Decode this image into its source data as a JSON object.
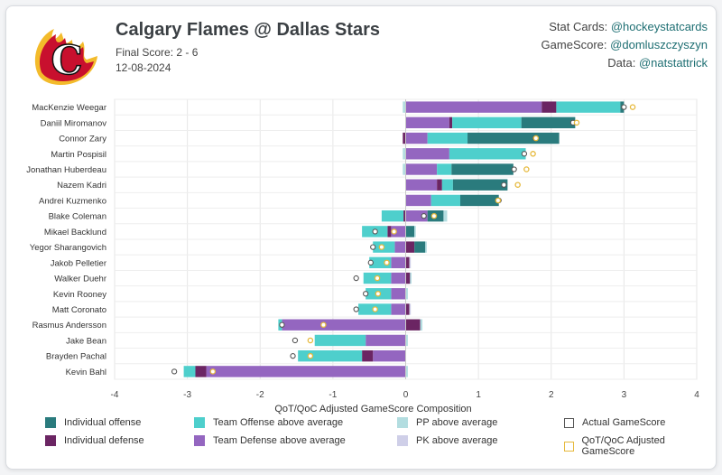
{
  "header": {
    "title": "Calgary Flames @ Dallas Stars",
    "final_score": "Final Score: 2 - 6",
    "date": "12-08-2024"
  },
  "credits": [
    {
      "label": "Stat Cards:",
      "handle": "@hockeystatcards"
    },
    {
      "label": "GameScore:",
      "handle": "@domluszczyszyn"
    },
    {
      "label": "Data:",
      "handle": "@natstattrick"
    }
  ],
  "logo": {
    "name": "calgary-flames-logo",
    "text": "C"
  },
  "colors": {
    "individual_offense": "#2a7b7d",
    "individual_defense": "#6b2563",
    "team_offense": "#4ecfcc",
    "team_defense": "#9466c0",
    "pp": "#b3dde0",
    "pk": "#cfcfe8",
    "actual_marker": "#555555",
    "adjusted_marker": "#e6b93c"
  },
  "chart_data": {
    "type": "bar",
    "orientation": "horizontal-stacked",
    "xlabel": "QoT/QoC Adjusted GameScore Composition",
    "xlim": [
      -4,
      4
    ],
    "xticks": [
      "-4",
      "-3",
      "-2",
      "-1",
      "0",
      "1",
      "2",
      "3",
      "4"
    ],
    "grid": true,
    "players": [
      "MacKenzie Weegar",
      "Daniil Miromanov",
      "Connor Zary",
      "Martin Pospisil",
      "Jonathan Huberdeau",
      "Nazem Kadri",
      "Andrei Kuzmenko",
      "Blake Coleman",
      "Mikael Backlund",
      "Yegor Sharangovich",
      "Jakob Pelletier",
      "Walker Duehr",
      "Kevin Rooney",
      "Matt Coronato",
      "Rasmus Andersson",
      "Jake Bean",
      "Brayden Pachal",
      "Kevin Bahl"
    ],
    "series": [
      {
        "name": "Individual offense",
        "key": "io",
        "values": [
          0.05,
          0.74,
          1.26,
          0,
          0.85,
          0.75,
          0.53,
          0.22,
          0.12,
          0.15,
          0,
          0,
          0,
          0,
          0,
          0,
          0,
          0
        ]
      },
      {
        "name": "Individual defense",
        "key": "id",
        "values": [
          0.2,
          0.04,
          -0.04,
          0,
          0,
          0.07,
          0,
          -0.03,
          -0.05,
          0.12,
          0.05,
          0.06,
          0,
          0.05,
          0.2,
          0,
          -0.15,
          -0.15
        ]
      },
      {
        "name": "Team Offense above average",
        "key": "to",
        "values": [
          0.88,
          0.95,
          0.55,
          1.05,
          0.2,
          0.15,
          0.4,
          -0.3,
          -0.35,
          -0.3,
          -0.3,
          -0.38,
          -0.35,
          -0.45,
          -0.05,
          -0.7,
          -0.88,
          -0.16
        ]
      },
      {
        "name": "Team Defense above average",
        "key": "td",
        "values": [
          1.87,
          0.6,
          0.3,
          0.6,
          0.43,
          0.43,
          0.35,
          0.3,
          -0.2,
          -0.15,
          -0.2,
          -0.2,
          -0.2,
          -0.2,
          -1.7,
          -0.55,
          -0.45,
          -2.74
        ]
      },
      {
        "name": "PP above average",
        "key": "pp",
        "values": [
          -0.04,
          0,
          0,
          -0.04,
          -0.04,
          0,
          0,
          0.05,
          0.02,
          0.02,
          0,
          0.02,
          0.03,
          0,
          0.03,
          0.03,
          0,
          0.03
        ]
      },
      {
        "name": "PK above average",
        "key": "pk",
        "values": [
          0,
          0,
          0,
          0,
          0,
          0,
          0,
          0,
          0,
          0,
          0.02,
          0,
          0,
          0.02,
          0,
          0,
          0,
          0
        ]
      }
    ],
    "actual_gamescore": [
      3.0,
      2.3,
      1.78,
      1.63,
      1.49,
      1.35,
      1.28,
      0.25,
      -0.42,
      -0.45,
      -0.48,
      -0.68,
      -0.55,
      -0.68,
      -1.7,
      -1.52,
      -1.55,
      -3.18
    ],
    "adjusted_gamescore": [
      3.12,
      2.35,
      1.79,
      1.75,
      1.66,
      1.54,
      1.27,
      0.39,
      -0.16,
      -0.33,
      -0.26,
      -0.39,
      -0.38,
      -0.42,
      -1.13,
      -1.31,
      -1.31,
      -2.65
    ],
    "legend": {
      "placement": "bottom",
      "items": [
        {
          "label": "Individual offense",
          "color_key": "individual_offense",
          "shape": "square"
        },
        {
          "label": "Team Offense above average",
          "color_key": "team_offense",
          "shape": "square"
        },
        {
          "label": "PP above average",
          "color_key": "pp",
          "shape": "square"
        },
        {
          "label": "Actual GameScore",
          "color_key": "actual_marker",
          "shape": "hollow"
        },
        {
          "label": "Individual defense",
          "color_key": "individual_defense",
          "shape": "square"
        },
        {
          "label": "Team Defense above average",
          "color_key": "team_defense",
          "shape": "square"
        },
        {
          "label": "PK above average",
          "color_key": "pk",
          "shape": "square"
        },
        {
          "label": "QoT/QoC Adjusted GameScore",
          "color_key": "adjusted_marker",
          "shape": "hollow"
        }
      ]
    }
  }
}
